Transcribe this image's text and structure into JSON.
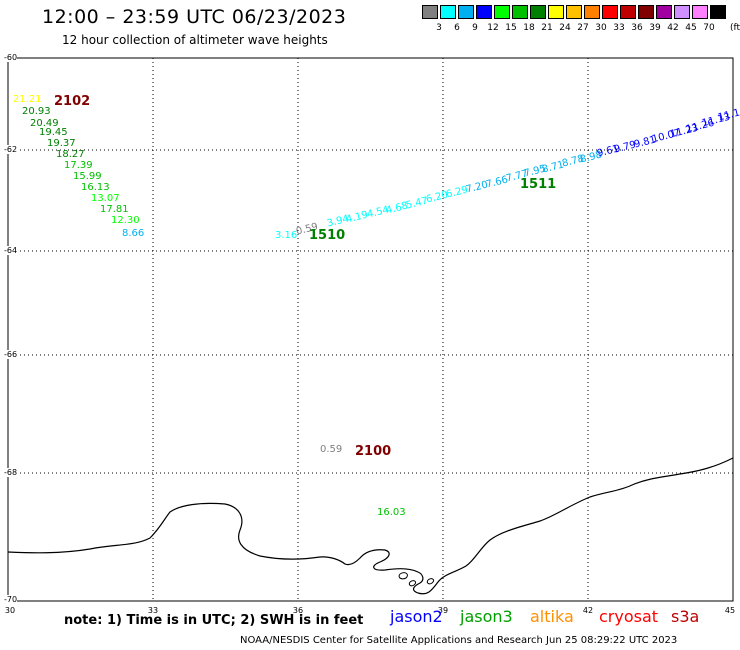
{
  "title": "12:00 – 23:59 UTC 06/23/2023",
  "subtitle": "12 hour collection of altimeter wave heights",
  "colorbar": {
    "unit": "(ft)",
    "swatches": [
      {
        "label": "3",
        "color": "#808080"
      },
      {
        "label": "6",
        "color": "#00ffff"
      },
      {
        "label": "9",
        "color": "#00b0f0"
      },
      {
        "label": "12",
        "color": "#0000ff"
      },
      {
        "label": "15",
        "color": "#00ff00"
      },
      {
        "label": "18",
        "color": "#00c000"
      },
      {
        "label": "21",
        "color": "#008000"
      },
      {
        "label": "24",
        "color": "#ffff00"
      },
      {
        "label": "27",
        "color": "#ffc000"
      },
      {
        "label": "30",
        "color": "#ff8000"
      },
      {
        "label": "33",
        "color": "#ff0000"
      },
      {
        "label": "36",
        "color": "#c00000"
      },
      {
        "label": "39",
        "color": "#800000"
      },
      {
        "label": "42",
        "color": "#a000a0"
      },
      {
        "label": "45",
        "color": "#d090ff"
      },
      {
        "label": "70",
        "color": "#ff80ff"
      },
      {
        "label": "",
        "color": "#000000"
      }
    ]
  },
  "map": {
    "lon_range": [
      30,
      45
    ],
    "lat_range": [
      -60,
      -70
    ],
    "lat_ticks": [
      "-60",
      "-62",
      "-64",
      "-66",
      "-68",
      "-70"
    ],
    "lon_ticks": [
      "30",
      "33",
      "36",
      "39",
      "42",
      "45"
    ]
  },
  "time_labels": [
    {
      "text": "2102",
      "color": "#800000"
    },
    {
      "text": "1510",
      "color": "#008000"
    },
    {
      "text": "1511",
      "color": "#008000"
    },
    {
      "text": "2100",
      "color": "#800000"
    }
  ],
  "wave_heights": {
    "track_2102": [
      {
        "text": "21.21",
        "color": "#ffff00"
      },
      {
        "text": "20.93",
        "color": "#008000"
      },
      {
        "text": "20.49",
        "color": "#008000"
      },
      {
        "text": "19.45",
        "color": "#008000"
      },
      {
        "text": "19.37",
        "color": "#008000"
      },
      {
        "text": "18.27",
        "color": "#008000"
      },
      {
        "text": "17.39",
        "color": "#00c000"
      },
      {
        "text": "15.99",
        "color": "#00c000"
      },
      {
        "text": "16.13",
        "color": "#00c000"
      },
      {
        "text": "13.07",
        "color": "#00ff00"
      },
      {
        "text": "17.81",
        "color": "#00c000"
      },
      {
        "text": "12.30",
        "color": "#00ff00"
      },
      {
        "text": "8.66",
        "color": "#00b0f0"
      }
    ],
    "track_1510": [
      {
        "text": "3.16",
        "color": "#00ffff"
      },
      {
        "text": "0.59",
        "color": "#808080"
      },
      {
        "text": "3.94",
        "color": "#00ffff"
      },
      {
        "text": "4.19",
        "color": "#00ffff"
      },
      {
        "text": "4.54",
        "color": "#00ffff"
      },
      {
        "text": "4.68",
        "color": "#00ffff"
      },
      {
        "text": "5.47",
        "color": "#00ffff"
      },
      {
        "text": "6.20",
        "color": "#00ffff"
      },
      {
        "text": "6.29",
        "color": "#00ffff"
      },
      {
        "text": "7.20",
        "color": "#00b0f0"
      },
      {
        "text": "7.66",
        "color": "#00b0f0"
      },
      {
        "text": "7.77",
        "color": "#00b0f0"
      },
      {
        "text": "7.95",
        "color": "#00b0f0"
      },
      {
        "text": "8.71",
        "color": "#00b0f0"
      },
      {
        "text": "8.78",
        "color": "#00b0f0"
      },
      {
        "text": "8.98",
        "color": "#00b0f0"
      },
      {
        "text": "9.61",
        "color": "#0000ff"
      },
      {
        "text": "9.79",
        "color": "#0000ff"
      },
      {
        "text": "9.81",
        "color": "#0000ff"
      },
      {
        "text": "10.07",
        "color": "#0000ff"
      },
      {
        "text": "11.23",
        "color": "#0000ff"
      },
      {
        "text": "11.26",
        "color": "#0000ff"
      },
      {
        "text": "11.13",
        "color": "#0000ff"
      },
      {
        "text": "11.1",
        "color": "#0000ff"
      }
    ],
    "isolated": [
      {
        "text": "0.59",
        "color": "#808080"
      },
      {
        "text": "16.03",
        "color": "#00c000"
      }
    ]
  },
  "note": "note: 1) Time is in UTC; 2) SWH is in feet",
  "satellites": [
    {
      "text": "jason2",
      "color": "#0000ff"
    },
    {
      "text": "jason3",
      "color": "#00a000"
    },
    {
      "text": "altika",
      "color": "#ff9000"
    },
    {
      "text": "cryosat",
      "color": "#ff0000"
    },
    {
      "text": "s3a",
      "color": "#c00000"
    }
  ],
  "credit": "NOAA/NESDIS Center for Satellite Applications and Research    Jun 25 08:29:22 UTC 2023"
}
